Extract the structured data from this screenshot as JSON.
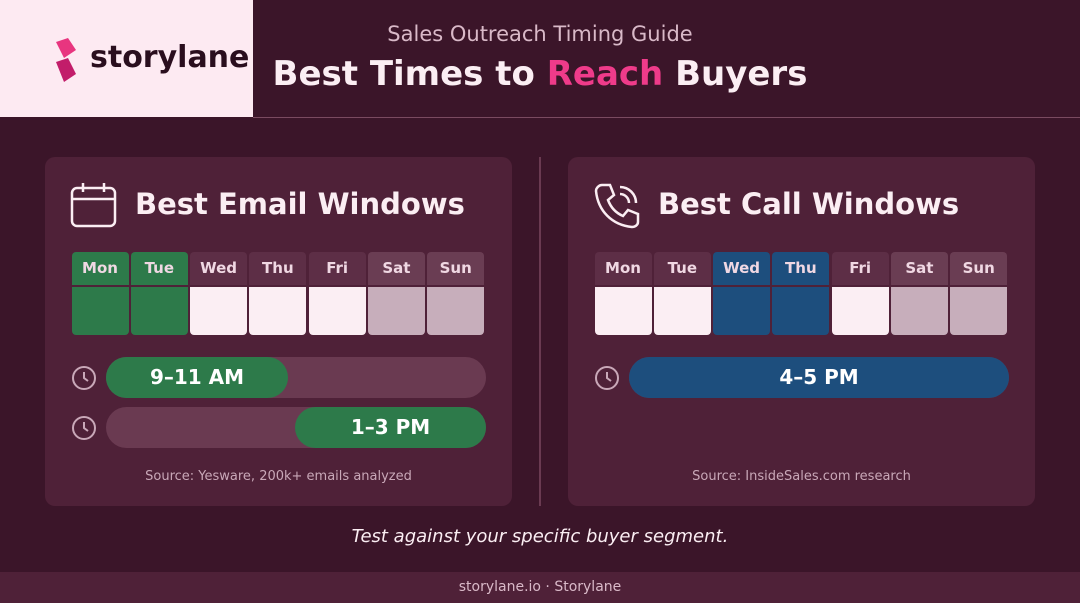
{
  "header": {
    "logo": "storylane",
    "subtitle": "Sales Outreach Timing Guide",
    "title": {
      "before": "Best Times to",
      "highlight": "Reach",
      "after": "Buyers"
    }
  },
  "panels": [
    {
      "title": "Best Email Windows",
      "days": [
        {
          "label": "Mon",
          "header_color": "#2d7a4a",
          "cell_color": "#2d7a4a"
        },
        {
          "label": "Tue",
          "header_color": "#2d7a4a",
          "cell_color": "#2d7a4a"
        },
        {
          "label": "Wed",
          "header_color": "#5d2e46",
          "cell_color": "#fbeef3"
        },
        {
          "label": "Thu",
          "header_color": "#5d2e46",
          "cell_color": "#fbeef3"
        },
        {
          "label": "Fri",
          "header_color": "#5d2e46",
          "cell_color": "#fbeef3"
        },
        {
          "label": "Sat",
          "header_color": "#6a3d53",
          "cell_color": "#c7aebb"
        },
        {
          "label": "Sun",
          "header_color": "#6a3d53",
          "cell_color": "#c7aebb"
        }
      ],
      "windows": [
        "9–11 AM",
        "1–3 PM"
      ],
      "source": "Source: Yesware, 200k+ emails analyzed"
    },
    {
      "title": "Best Call Windows",
      "days": [
        {
          "label": "Mon",
          "header_color": "#5d2e46",
          "cell_color": "#fbeef3"
        },
        {
          "label": "Tue",
          "header_color": "#5d2e46",
          "cell_color": "#fbeef3"
        },
        {
          "label": "Wed",
          "header_color": "#1d4e7d",
          "cell_color": "#1d4e7d"
        },
        {
          "label": "Thu",
          "header_color": "#1d4e7d",
          "cell_color": "#1d4e7d"
        },
        {
          "label": "Fri",
          "header_color": "#5d2e46",
          "cell_color": "#fbeef3"
        },
        {
          "label": "Sat",
          "header_color": "#6a3d53",
          "cell_color": "#c7aebb"
        },
        {
          "label": "Sun",
          "header_color": "#6a3d53",
          "cell_color": "#c7aebb"
        }
      ],
      "windows": [
        "4–5 PM"
      ],
      "source": "Source: InsideSales.com research"
    }
  ],
  "tagline": "Test against your specific buyer segment.",
  "footer": "storylane.io · Storylane"
}
